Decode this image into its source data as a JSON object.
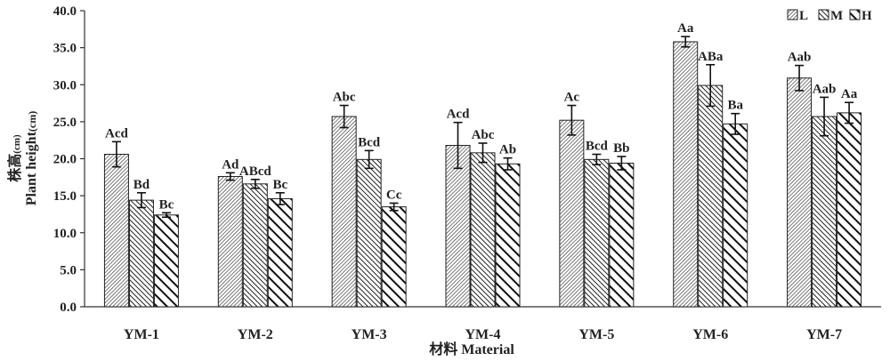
{
  "chart_data": {
    "type": "bar",
    "categories": [
      "YM-1",
      "YM-2",
      "YM-3",
      "YM-4",
      "YM-5",
      "YM-6",
      "YM-7"
    ],
    "series": [
      {
        "name": "L",
        "pattern": "fine-diagonal",
        "values": [
          20.6,
          17.6,
          25.7,
          21.8,
          25.2,
          35.8,
          30.9
        ],
        "errors": [
          1.7,
          0.5,
          1.5,
          3.1,
          2.0,
          0.7,
          1.7
        ],
        "labels": [
          "Acd",
          "Ad",
          "Abc",
          "Acd",
          "Ac",
          "Aa",
          "Aab"
        ]
      },
      {
        "name": "M",
        "pattern": "medium-diagonal",
        "values": [
          14.4,
          16.6,
          19.9,
          20.8,
          19.9,
          29.9,
          25.7
        ],
        "errors": [
          1.0,
          0.6,
          1.2,
          1.3,
          0.7,
          2.8,
          2.6
        ],
        "labels": [
          "Bd",
          "ABcd",
          "Bcd",
          "Abc",
          "Bcd",
          "ABa",
          "Aab"
        ]
      },
      {
        "name": "H",
        "pattern": "wide-diagonal",
        "values": [
          12.4,
          14.6,
          13.5,
          19.3,
          19.4,
          24.7,
          26.2
        ],
        "errors": [
          0.3,
          0.8,
          0.5,
          0.8,
          0.9,
          1.4,
          1.4
        ],
        "labels": [
          "Bc",
          "Bc",
          "Cc",
          "Ab",
          "Bb",
          "Ba",
          "Aa"
        ]
      }
    ],
    "ylabel_cn": "株高",
    "ylabel_cn_unit": "(cm)",
    "ylabel_en": "Plant height",
    "ylabel_en_unit": "(cm)",
    "xlabel": "材料 Material",
    "ylim": [
      0,
      40
    ],
    "yticks": [
      "0.0",
      "5.0",
      "10.0",
      "15.0",
      "20.0",
      "25.0",
      "30.0",
      "35.0",
      "40.0"
    ],
    "grid": false,
    "legend_position": "top-right"
  }
}
